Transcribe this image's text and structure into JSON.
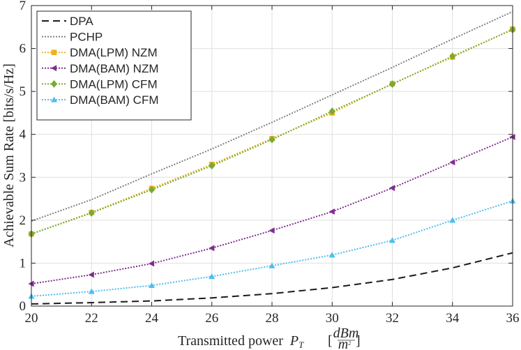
{
  "chart_data": {
    "type": "line",
    "title": "",
    "xlabel": "Transmitted power",
    "xlabel_symbol": "P",
    "xlabel_subscript": "T",
    "xlabel_unit_numerator": "dBm",
    "xlabel_unit_denominator": "m",
    "xlabel_unit_denominator_exponent": "2",
    "ylabel": "Achievable Sum Rate [bits/s/Hz]",
    "xlim": [
      20,
      36
    ],
    "ylim": [
      0,
      7
    ],
    "xticks": [
      20,
      22,
      24,
      26,
      28,
      30,
      32,
      34,
      36
    ],
    "yticks": [
      0,
      1,
      2,
      3,
      4,
      5,
      6,
      7
    ],
    "grid": true,
    "legend_position": "top-left",
    "x": [
      20,
      22,
      24,
      26,
      28,
      30,
      32,
      34,
      36
    ],
    "series": [
      {
        "name": "DPA",
        "color": "#1a1a1a",
        "dash": "10,6",
        "marker": "none",
        "values": [
          0.05,
          0.08,
          0.12,
          0.19,
          0.29,
          0.43,
          0.62,
          0.89,
          1.24
        ]
      },
      {
        "name": "PCHP",
        "color": "#808080",
        "dash": "2,2",
        "marker": "none",
        "values": [
          1.98,
          2.48,
          3.08,
          3.66,
          4.28,
          4.92,
          5.56,
          6.22,
          6.86
        ]
      },
      {
        "name": "DMA(LPM) NZM",
        "color": "#EDB120",
        "dash": "2,2",
        "marker": "square",
        "values": [
          1.68,
          2.18,
          2.74,
          3.3,
          3.9,
          4.5,
          5.18,
          5.8,
          6.45
        ]
      },
      {
        "name": "DMA(BAM) NZM",
        "color": "#7E2F8E",
        "dash": "2,2",
        "marker": "triangle-left",
        "values": [
          0.52,
          0.73,
          0.99,
          1.35,
          1.76,
          2.2,
          2.75,
          3.35,
          3.94
        ]
      },
      {
        "name": "DMA(LPM) CFM",
        "color": "#77AC30",
        "dash": "2,2",
        "marker": "diamond",
        "values": [
          1.68,
          2.17,
          2.71,
          3.27,
          3.88,
          4.54,
          5.17,
          5.82,
          6.44
        ]
      },
      {
        "name": "DMA(BAM) CFM",
        "color": "#4DBEEE",
        "dash": "2,2",
        "marker": "triangle-up",
        "values": [
          0.23,
          0.34,
          0.48,
          0.69,
          0.94,
          1.19,
          1.53,
          2.0,
          2.45
        ]
      }
    ]
  }
}
